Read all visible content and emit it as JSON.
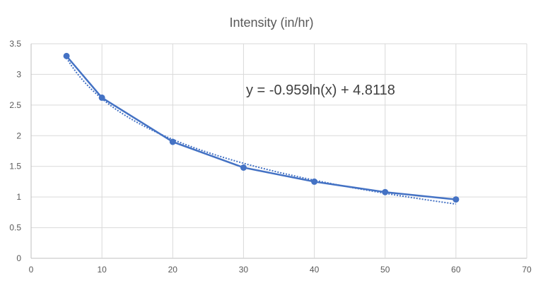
{
  "chart_data": {
    "type": "scatter",
    "title": "Intensity (in/hr)",
    "xlabel": "",
    "ylabel": "",
    "xlim": [
      0,
      70
    ],
    "ylim": [
      0,
      3.5
    ],
    "xticks": [
      0,
      10,
      20,
      30,
      40,
      50,
      60,
      70
    ],
    "yticks": [
      0,
      0.5,
      1,
      1.5,
      2,
      2.5,
      3,
      3.5
    ],
    "grid": true,
    "legend": "none",
    "series": [
      {
        "x": [
          5,
          10,
          20,
          30,
          40,
          50,
          60
        ],
        "y": [
          3.3,
          2.62,
          1.9,
          1.48,
          1.25,
          1.08,
          0.96
        ],
        "style": "line-with-markers",
        "color": "#4472C4"
      }
    ],
    "trendline": {
      "kind": "logarithmic",
      "a": -0.959,
      "b": 4.8118,
      "x_from": 5,
      "x_to": 60,
      "equation": "y = -0.959ln(x) + 4.8118",
      "style": "dotted",
      "color": "#4472C4"
    }
  }
}
